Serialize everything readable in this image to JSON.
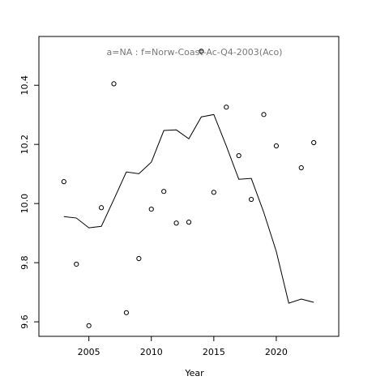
{
  "chart_data": {
    "type": "line",
    "title": "a=NA  :  f=Norw-Coast-Ac-Q4-2003(Aco)",
    "x_label": "Year",
    "x": [
      2003,
      2004,
      2005,
      2006,
      2007,
      2008,
      2009,
      2010,
      2011,
      2012,
      2013,
      2014,
      2015,
      2016,
      2017,
      2018,
      2019,
      2020,
      2021,
      2022,
      2023
    ],
    "series": [
      {
        "style": "points",
        "color": "#000000",
        "values": [
          10.074,
          9.795,
          9.587,
          9.986,
          10.405,
          9.631,
          9.814,
          9.981,
          10.041,
          9.934,
          9.937,
          10.515,
          10.038,
          10.326,
          10.162,
          10.014,
          10.301,
          10.195,
          null,
          10.121,
          10.206
        ]
      },
      {
        "style": "line",
        "color": "#000000",
        "values": [
          9.956,
          9.951,
          9.918,
          9.923,
          10.014,
          10.107,
          10.101,
          10.14,
          10.247,
          10.249,
          10.219,
          10.293,
          10.301,
          10.195,
          10.082,
          10.085,
          9.97,
          9.838,
          9.663,
          9.677,
          9.666
        ]
      }
    ],
    "xlim": [
      2001,
      2025
    ],
    "xticks": [
      2005,
      2010,
      2015,
      2020
    ],
    "ylim": [
      9.551,
      10.565
    ],
    "yticks": [
      {
        "value": 9.6,
        "label": "9.6"
      },
      {
        "value": 9.8,
        "label": "9.8"
      },
      {
        "value": 10.0,
        "label": "10.0"
      },
      {
        "value": 10.2,
        "label": "10.2"
      },
      {
        "value": 10.4,
        "label": "10.4"
      }
    ]
  }
}
